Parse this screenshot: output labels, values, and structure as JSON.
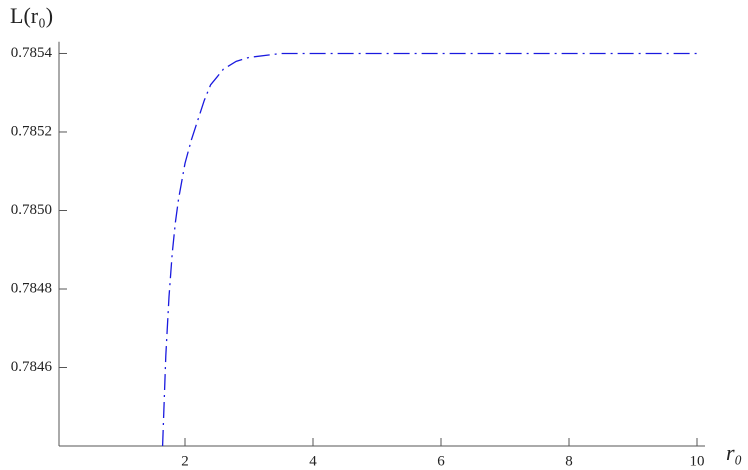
{
  "chart_data": {
    "type": "line",
    "x_label": "r₀",
    "y_label": "L(r₀)",
    "x": [
      1.65,
      1.7,
      1.75,
      1.8,
      1.85,
      1.9,
      2.0,
      2.1,
      2.2,
      2.3,
      2.4,
      2.5,
      2.6,
      2.8,
      3.0,
      3.5,
      4,
      5,
      6,
      7,
      8,
      9,
      10
    ],
    "series": [
      {
        "color": "#1a1adf",
        "values": [
          0.7844,
          0.78463,
          0.78478,
          0.78489,
          0.78497,
          0.78503,
          0.78512,
          0.78518,
          0.78523,
          0.78528,
          0.78532,
          0.78534,
          0.78536,
          0.78538,
          0.78539,
          0.7854,
          0.7854,
          0.7854,
          0.7854,
          0.7854,
          0.7854,
          0.7854,
          0.7854
        ]
      }
    ],
    "xlim": [
      0,
      10
    ],
    "ylim": [
      0.7844,
      0.78543
    ],
    "xticks": [
      2,
      4,
      6,
      8,
      10
    ],
    "yticks": [
      0.7846,
      0.7848,
      {
        "value": 0.785,
        "label": "0.7850"
      },
      0.7852,
      0.7854
    ],
    "dashed": true
  }
}
